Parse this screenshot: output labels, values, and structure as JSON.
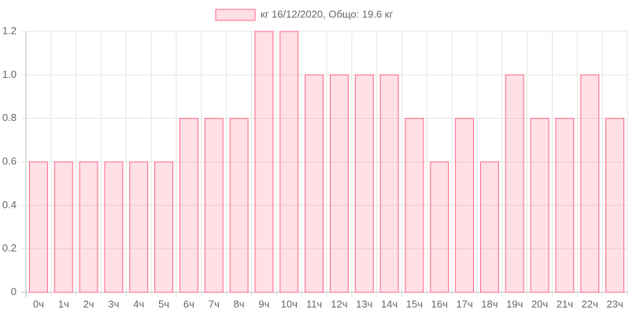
{
  "chart_data": {
    "type": "bar",
    "categories": [
      "0ч",
      "1ч",
      "2ч",
      "3ч",
      "4ч",
      "5ч",
      "6ч",
      "7ч",
      "8ч",
      "9ч",
      "10ч",
      "11ч",
      "12ч",
      "13ч",
      "14ч",
      "15ч",
      "16ч",
      "17ч",
      "18ч",
      "19ч",
      "20ч",
      "21ч",
      "22ч",
      "23ч"
    ],
    "series": [
      {
        "name": "кг 16/12/2020, Общо: 19.6 кг",
        "color": "#ff6384",
        "values": [
          0.6,
          0.6,
          0.6,
          0.6,
          0.6,
          0.6,
          0.8,
          0.8,
          0.8,
          1.2,
          1.2,
          1.0,
          1.0,
          1.0,
          1.0,
          0.8,
          0.6,
          0.8,
          0.6,
          1.0,
          0.8,
          0.8,
          1.0,
          0.8
        ]
      }
    ],
    "ylim": [
      0,
      1.2
    ],
    "yticks": [
      0,
      0.2,
      0.4,
      0.6,
      0.8,
      {
        "value": 1,
        "label": "1.0"
      },
      1.2
    ],
    "grid": true,
    "legend": "top"
  }
}
